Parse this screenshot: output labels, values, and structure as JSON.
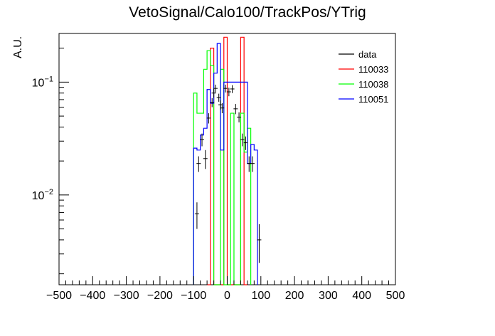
{
  "chart_data": {
    "type": "line",
    "title": "VetoSignal/Calo100/TrackPos/YTrig",
    "xlabel": "",
    "ylabel": "A.U.",
    "xlim": [
      -500,
      500
    ],
    "ylim": [
      0.0016,
      0.27
    ],
    "yscale": "log",
    "grid": false,
    "legend_position": "top-right",
    "x_ticks": [
      "−500",
      "−400",
      "−300",
      "−200",
      "−100",
      "0",
      "100",
      "200",
      "300",
      "400",
      "500"
    ],
    "x_tick_values": [
      -500,
      -400,
      -300,
      -200,
      -100,
      0,
      100,
      200,
      300,
      400,
      500
    ],
    "y_ticks": [
      {
        "value": 0.1,
        "base": "10",
        "exp": "−1"
      },
      {
        "value": 0.01,
        "base": "10",
        "exp": "−2"
      }
    ],
    "series": [
      {
        "name": "data",
        "color": "#000000",
        "style": "points",
        "x": [
          -90,
          -85,
          -75,
          -65,
          -55,
          -45,
          -40,
          -35,
          -25,
          -20,
          -15,
          -5,
          5,
          15,
          25,
          35,
          45,
          55,
          65,
          75,
          95
        ],
        "y": [
          0.0068,
          0.019,
          0.031,
          0.021,
          0.048,
          0.066,
          0.08,
          0.088,
          0.073,
          0.063,
          0.059,
          0.088,
          0.082,
          0.087,
          0.058,
          0.049,
          0.031,
          0.029,
          0.019,
          0.019,
          0.004
        ],
        "err": [
          0.0018,
          0.003,
          0.004,
          0.004,
          0.005,
          0.006,
          0.007,
          0.007,
          0.006,
          0.006,
          0.006,
          0.007,
          0.007,
          0.007,
          0.006,
          0.005,
          0.004,
          0.004,
          0.003,
          0.003,
          0.0015
        ]
      },
      {
        "name": "110033",
        "color": "#ff0000",
        "style": "step",
        "edges": [
          -60,
          -50,
          -40,
          -30,
          -20,
          -10,
          0,
          10,
          20,
          30,
          40,
          50,
          60
        ],
        "values": [
          0.0015,
          0.2,
          0.0015,
          0.0015,
          0.0015,
          0.25,
          0.0015,
          0.0015,
          0.0015,
          0.0015,
          0.25,
          0.0015
        ]
      },
      {
        "name": "110038",
        "color": "#00ff00",
        "style": "step",
        "edges": [
          -100,
          -90,
          -80,
          -70,
          -60,
          -50,
          -40,
          -30,
          -20,
          -10,
          0,
          10,
          20,
          30,
          40,
          50,
          60,
          70
        ],
        "values": [
          0.08,
          0.053,
          0.053,
          0.13,
          0.19,
          0.14,
          0.0015,
          0.0015,
          0.13,
          0.0015,
          0.0015,
          0.053,
          0.0015,
          0.0015,
          0.053,
          0.024,
          0.039
        ]
      },
      {
        "name": "110051",
        "color": "#0000ff",
        "style": "step",
        "edges": [
          -100,
          -90,
          -80,
          -70,
          -60,
          -50,
          -40,
          -30,
          -20,
          -10,
          0,
          10,
          20,
          30,
          40,
          50,
          60,
          70,
          80,
          90
        ],
        "values": [
          0.026,
          0.025,
          0.034,
          0.039,
          0.086,
          0.065,
          0.12,
          0.22,
          0.025,
          0.1,
          0.1,
          0.1,
          0.1,
          0.1,
          0.1,
          0.1,
          0.019,
          0.028,
          0.025
        ]
      }
    ]
  }
}
